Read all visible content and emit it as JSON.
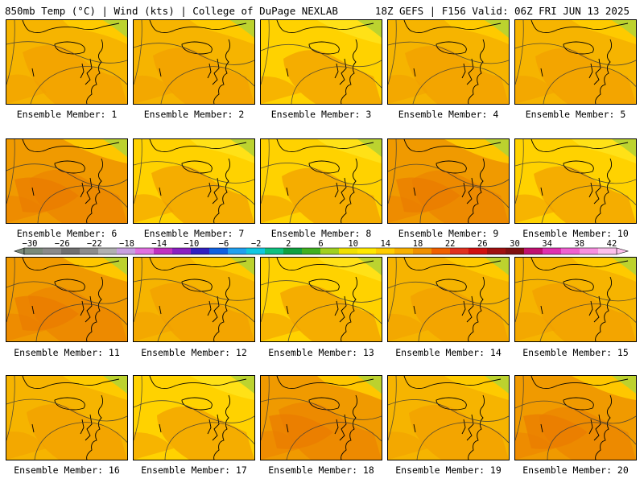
{
  "header": {
    "left": "850mb Temp (°C) | Wind (kts) | College of DuPage NEXLAB",
    "right": "18Z GEFS | F156 Valid: 06Z FRI JUN 13 2025"
  },
  "colorbar": {
    "labels": [
      "−30",
      "−26",
      "−22",
      "−18",
      "−14",
      "−10",
      "−6",
      "−2",
      "2",
      "6",
      "10",
      "14",
      "18",
      "22",
      "26",
      "30",
      "34",
      "38",
      "42"
    ],
    "colors": [
      "#7a8a7a",
      "#8a8a8a",
      "#707070",
      "#8c8c8c",
      "#b0b0b0",
      "#c8a0e0",
      "#e070e0",
      "#c030c0",
      "#8a20c0",
      "#3020c0",
      "#1060e0",
      "#20a0f0",
      "#10c8e0",
      "#10c080",
      "#10a040",
      "#40b020",
      "#a0d020",
      "#f0e000",
      "#ffe800",
      "#ffcc00",
      "#f8b000",
      "#f09000",
      "#f06000",
      "#e03020",
      "#d01010",
      "#a01010",
      "#801010",
      "#c01070",
      "#e030b0",
      "#f060d0",
      "#f890e0",
      "#fcc0ec"
    ]
  },
  "members": [
    {
      "label": "Ensemble Member: 1",
      "variant": "warm"
    },
    {
      "label": "Ensemble Member: 2",
      "variant": "warm"
    },
    {
      "label": "Ensemble Member: 3",
      "variant": "cool"
    },
    {
      "label": "Ensemble Member: 4",
      "variant": "warm"
    },
    {
      "label": "Ensemble Member: 5",
      "variant": "warm"
    },
    {
      "label": "Ensemble Member: 6",
      "variant": "hot"
    },
    {
      "label": "Ensemble Member: 7",
      "variant": "cool"
    },
    {
      "label": "Ensemble Member: 8",
      "variant": "cool"
    },
    {
      "label": "Ensemble Member: 9",
      "variant": "hot"
    },
    {
      "label": "Ensemble Member: 10",
      "variant": "cool"
    },
    {
      "label": "Ensemble Member: 11",
      "variant": "hot"
    },
    {
      "label": "Ensemble Member: 12",
      "variant": "warm"
    },
    {
      "label": "Ensemble Member: 13",
      "variant": "cool"
    },
    {
      "label": "Ensemble Member: 14",
      "variant": "warm"
    },
    {
      "label": "Ensemble Member: 15",
      "variant": "warm"
    },
    {
      "label": "Ensemble Member: 16",
      "variant": "warm"
    },
    {
      "label": "Ensemble Member: 17",
      "variant": "cool"
    },
    {
      "label": "Ensemble Member: 18",
      "variant": "hot"
    },
    {
      "label": "Ensemble Member: 19",
      "variant": "warm"
    },
    {
      "label": "Ensemble Member: 20",
      "variant": "hot"
    }
  ],
  "palette": {
    "cool": "#ffd200",
    "warm": "#f6b400",
    "hot": "#f09a00",
    "accent_green": "#b8d230",
    "contour": "#3a3a3a"
  }
}
